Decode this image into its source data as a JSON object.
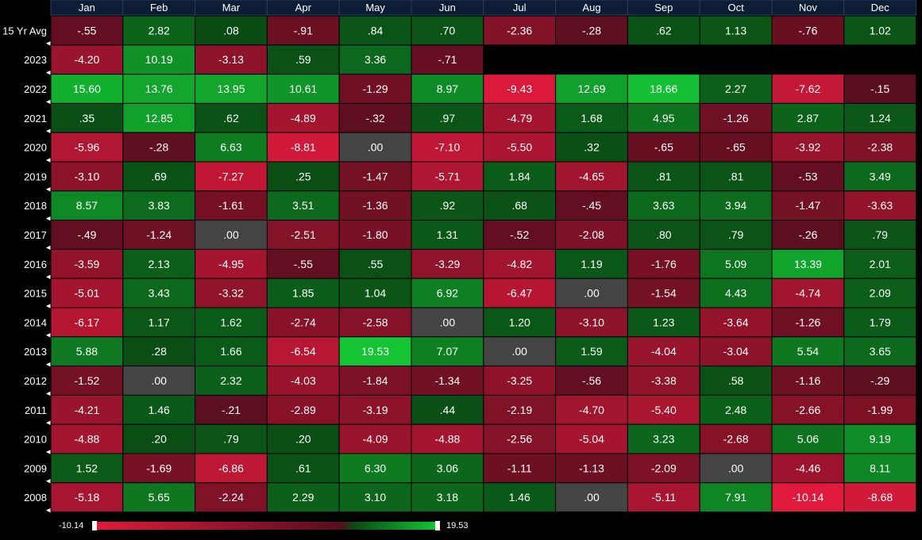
{
  "chart_data": {
    "type": "heatmap",
    "columns": [
      "Jan",
      "Feb",
      "Mar",
      "Apr",
      "May",
      "Jun",
      "Jul",
      "Aug",
      "Sep",
      "Oct",
      "Nov",
      "Dec"
    ],
    "rows": [
      {
        "label": "15 Yr Avg",
        "values": [
          "-.55",
          "2.82",
          ".08",
          "-.91",
          ".84",
          ".70",
          "-2.36",
          "-.28",
          ".62",
          "1.13",
          "-.76",
          "1.02"
        ]
      },
      {
        "label": "2023",
        "values": [
          "-4.20",
          "10.19",
          "-3.13",
          ".59",
          "3.36",
          "-.71",
          null,
          null,
          null,
          null,
          null,
          null
        ]
      },
      {
        "label": "2022",
        "values": [
          "15.60",
          "13.76",
          "13.95",
          "10.61",
          "-1.29",
          "8.97",
          "-9.43",
          "12.69",
          "18.66",
          "2.27",
          "-7.62",
          "-.15"
        ]
      },
      {
        "label": "2021",
        "values": [
          ".35",
          "12.85",
          ".62",
          "-4.89",
          "-.32",
          ".97",
          "-4.79",
          "1.68",
          "4.95",
          "-1.26",
          "2.87",
          "1.24"
        ]
      },
      {
        "label": "2020",
        "values": [
          "-5.96",
          "-.28",
          "6.63",
          "-8.81",
          ".00",
          "-7.10",
          "-5.50",
          ".32",
          "-.65",
          "-.65",
          "-3.92",
          "-2.38"
        ]
      },
      {
        "label": "2019",
        "values": [
          "-3.10",
          ".69",
          "-7.27",
          ".25",
          "-1.47",
          "-5.71",
          "1.84",
          "-4.65",
          ".81",
          ".81",
          "-.53",
          "3.49"
        ]
      },
      {
        "label": "2018",
        "values": [
          "8.57",
          "3.83",
          "-1.61",
          "3.51",
          "-1.36",
          ".92",
          ".68",
          "-.45",
          "3.63",
          "3.94",
          "-1.47",
          "-3.63"
        ]
      },
      {
        "label": "2017",
        "values": [
          "-.49",
          "-1.24",
          ".00",
          "-2.51",
          "-1.80",
          "1.31",
          "-.52",
          "-2.08",
          ".80",
          ".79",
          "-.26",
          ".79"
        ]
      },
      {
        "label": "2016",
        "values": [
          "-3.59",
          "2.13",
          "-4.95",
          "-.55",
          ".55",
          "-3.29",
          "-4.82",
          "1.19",
          "-1.76",
          "5.09",
          "13.39",
          "2.01"
        ]
      },
      {
        "label": "2015",
        "values": [
          "-5.01",
          "3.43",
          "-3.32",
          "1.85",
          "1.04",
          "6.92",
          "-6.47",
          ".00",
          "-1.54",
          "4.43",
          "-4.74",
          "2.09"
        ]
      },
      {
        "label": "2014",
        "values": [
          "-6.17",
          "1.17",
          "1.62",
          "-2.74",
          "-2.58",
          ".00",
          "1.20",
          "-3.10",
          "1.23",
          "-3.64",
          "-1.26",
          "1.79"
        ]
      },
      {
        "label": "2013",
        "values": [
          "5.88",
          ".28",
          "1.66",
          "-6.54",
          "19.53",
          "7.07",
          ".00",
          "1.59",
          "-4.04",
          "-3.04",
          "5.54",
          "3.65"
        ]
      },
      {
        "label": "2012",
        "values": [
          "-1.52",
          ".00",
          "2.32",
          "-4.03",
          "-1.84",
          "-1.34",
          "-3.25",
          "-.56",
          "-3.38",
          ".58",
          "-1.16",
          "-.29"
        ]
      },
      {
        "label": "2011",
        "values": [
          "-4.21",
          "1.46",
          "-.21",
          "-2.89",
          "-3.19",
          ".44",
          "-2.19",
          "-4.70",
          "-5.40",
          "2.48",
          "-2.66",
          "-1.99"
        ]
      },
      {
        "label": "2010",
        "values": [
          "-4.88",
          ".20",
          ".79",
          ".20",
          "-4.09",
          "-4.88",
          "-2.56",
          "-5.04",
          "3.23",
          "-2.68",
          "5.06",
          "9.19"
        ]
      },
      {
        "label": "2009",
        "values": [
          "1.52",
          "-1.69",
          "-6.86",
          ".61",
          "6.30",
          "3.06",
          "-1.11",
          "-1.13",
          "-2.09",
          ".00",
          "-4.46",
          "8.11"
        ]
      },
      {
        "label": "2008",
        "values": [
          "-5.18",
          "5.65",
          "-2.24",
          "2.29",
          "3.10",
          "3.18",
          "1.46",
          ".00",
          "-5.11",
          "7.91",
          "-10.14",
          "-8.68"
        ]
      }
    ],
    "scale": {
      "min": -10.14,
      "max": 19.53,
      "min_label": "-10.14",
      "max_label": "19.53"
    },
    "colors": {
      "background": "#000000",
      "header_bg": "#0d1d36",
      "header_border": "#2a3c5c",
      "neg_strong": "#e01a3c",
      "neg_weak": "#560e1e",
      "zero": "#444444",
      "pos_weak": "#0a4a14",
      "pos_strong": "#14c434",
      "text": "#ffffff"
    }
  }
}
